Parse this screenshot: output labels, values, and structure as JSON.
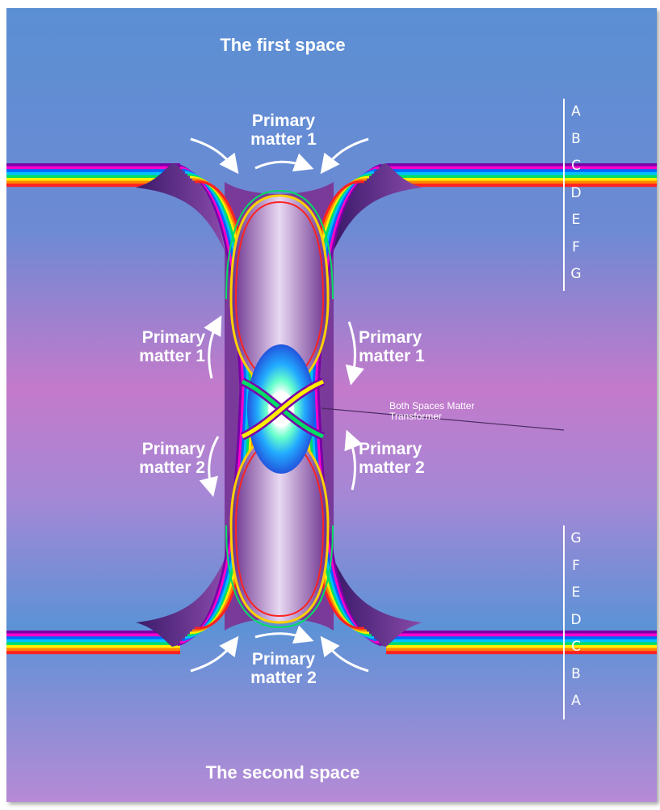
{
  "title_top": "The first space",
  "title_bottom": "The second space",
  "labels": {
    "top_center": [
      "Primary",
      "matter 1"
    ],
    "upper_left": [
      "Primary",
      "matter 1"
    ],
    "upper_right": [
      "Primary",
      "matter 1"
    ],
    "lower_left": [
      "Primary",
      "matter 2"
    ],
    "lower_right": [
      "Primary",
      "matter 2"
    ],
    "bottom_center": [
      "Primary",
      "matter 2"
    ]
  },
  "transformer_label": [
    "Both Spaces Matter",
    "Transformer"
  ],
  "scale_top": [
    "A",
    "B",
    "C",
    "D",
    "E",
    "F",
    "G"
  ],
  "scale_bottom": [
    "G",
    "F",
    "E",
    "D",
    "C",
    "B",
    "A"
  ],
  "colors": {
    "background_top": "#5a8ed2",
    "background_mid": "#c27ccd",
    "background_bottom": "#b88ad6",
    "vortex": "#7a3a9a",
    "rainbow": [
      "#7a00a8",
      "#ff00cc",
      "#0066ff",
      "#00c0ff",
      "#00dd66",
      "#ffee00",
      "#ff8800",
      "#ff2222"
    ]
  }
}
